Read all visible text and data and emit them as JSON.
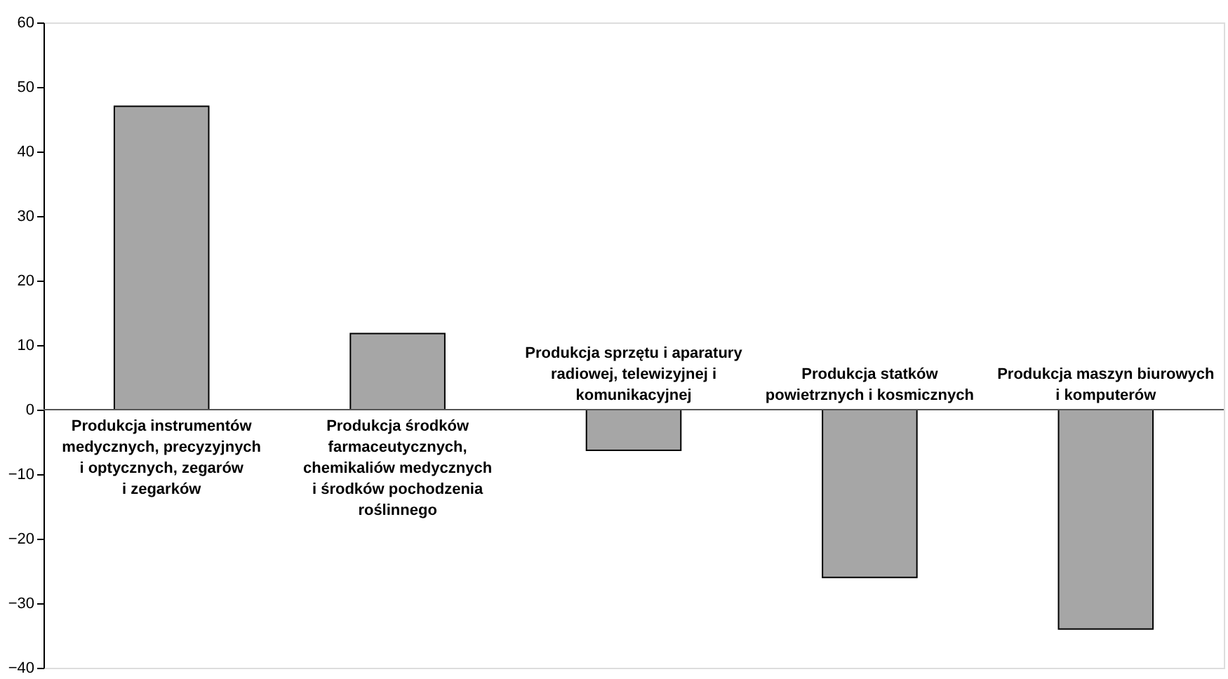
{
  "chart_data": {
    "type": "bar",
    "categories": [
      "Produkcja instrumentów\nmedycznych, precyzyjnych\ni optycznych, zegarów\ni zegarków",
      "Produkcja środków\nfarmaceutycznych,\nchemikaliów medycznych\ni środków pochodzenia\nroślinnego",
      "Produkcja sprzętu i aparatury\nradiowej, telewizyjnej i\nkomunikacyjnej",
      "Produkcja statków\npowietrznych i kosmicznych",
      "Produkcja maszyn biurowych\ni komputerów"
    ],
    "values": [
      47,
      11.8,
      -6.3,
      -26,
      -34
    ],
    "color": "#a6a6a6",
    "ylim": [
      -40,
      60
    ],
    "yticks": [
      -40,
      -30,
      -20,
      -10,
      0,
      10,
      20,
      30,
      40,
      50,
      60
    ],
    "grid": false
  }
}
